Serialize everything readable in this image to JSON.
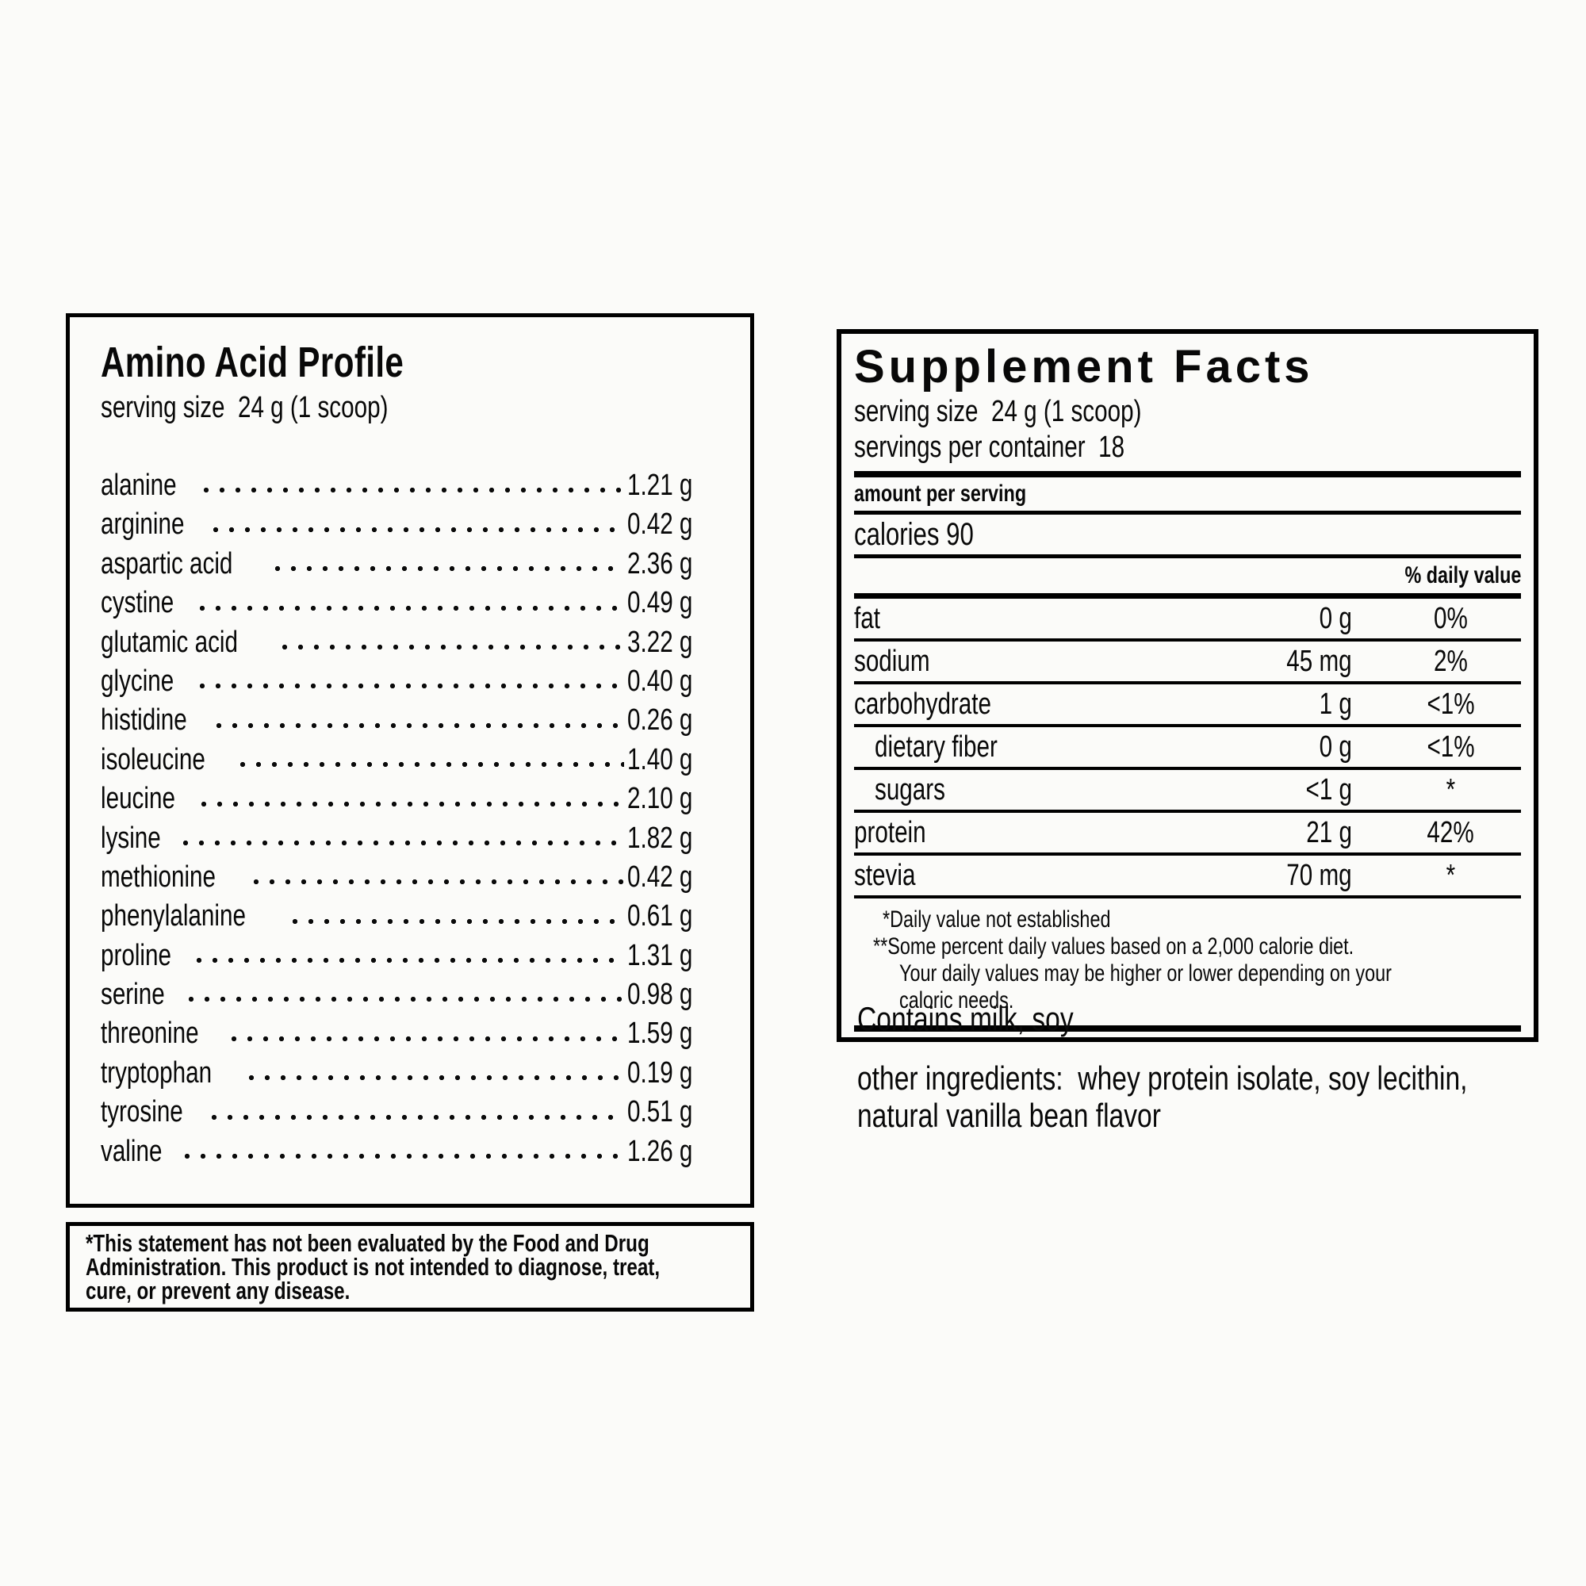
{
  "amino_panel": {
    "title": "Amino Acid Profile",
    "serving_size": "serving size  24 g (1 scoop)",
    "rows": [
      {
        "name": "alanine",
        "value": "1.21 g"
      },
      {
        "name": "arginine",
        "value": "0.42 g"
      },
      {
        "name": "aspartic acid",
        "value": "2.36 g"
      },
      {
        "name": "cystine",
        "value": "0.49 g"
      },
      {
        "name": "glutamic acid",
        "value": "3.22 g"
      },
      {
        "name": "glycine",
        "value": "0.40 g"
      },
      {
        "name": "histidine",
        "value": "0.26 g"
      },
      {
        "name": "isoleucine",
        "value": "1.40 g"
      },
      {
        "name": "leucine",
        "value": "2.10 g"
      },
      {
        "name": "lysine",
        "value": "1.82 g"
      },
      {
        "name": "methionine",
        "value": "0.42 g"
      },
      {
        "name": "phenylalanine",
        "value": "0.61 g"
      },
      {
        "name": "proline",
        "value": "1.31 g"
      },
      {
        "name": "serine",
        "value": "0.98 g"
      },
      {
        "name": "threonine",
        "value": "1.59 g"
      },
      {
        "name": "tryptophan",
        "value": "0.19 g"
      },
      {
        "name": "tyrosine",
        "value": "0.51 g"
      },
      {
        "name": "valine",
        "value": "1.26 g"
      }
    ]
  },
  "fda_disclaimer": {
    "lines": [
      "*This statement has not been evaluated by the Food and Drug",
      "Administration. This product is not intended to diagnose, treat,",
      "cure, or prevent any disease."
    ]
  },
  "supplement_panel": {
    "title": "Supplement Facts",
    "serving_size": "serving size  24 g (1 scoop)",
    "servings_per_container": "servings per container  18",
    "amount_per_serving": "amount per serving",
    "calories": "calories 90",
    "daily_value_header": "% daily value",
    "rows": [
      {
        "name": "fat",
        "amount": "0 g",
        "dv": "0%",
        "indent": false
      },
      {
        "name": "sodium",
        "amount": "45 mg",
        "dv": "2%",
        "indent": false
      },
      {
        "name": "carbohydrate",
        "amount": "1 g",
        "dv": "<1%",
        "indent": false
      },
      {
        "name": "dietary fiber",
        "amount": "0 g",
        "dv": "<1%",
        "indent": true
      },
      {
        "name": "sugars",
        "amount": "<1 g",
        "dv": "*",
        "indent": true
      },
      {
        "name": "protein",
        "amount": "21 g",
        "dv": "42%",
        "indent": false
      },
      {
        "name": "stevia",
        "amount": "70 mg",
        "dv": "*",
        "indent": false
      }
    ],
    "footnotes": [
      "*Daily value not established",
      "**Some percent daily values based on a 2,000 calorie diet.",
      "Your daily values may be higher or lower depending on your",
      "caloric needs."
    ]
  },
  "below_panel": {
    "contains": "Contains milk, soy",
    "other_ingredients_lines": [
      "other ingredients:  whey protein isolate, soy lecithin,",
      "natural vanilla bean flavor"
    ]
  }
}
